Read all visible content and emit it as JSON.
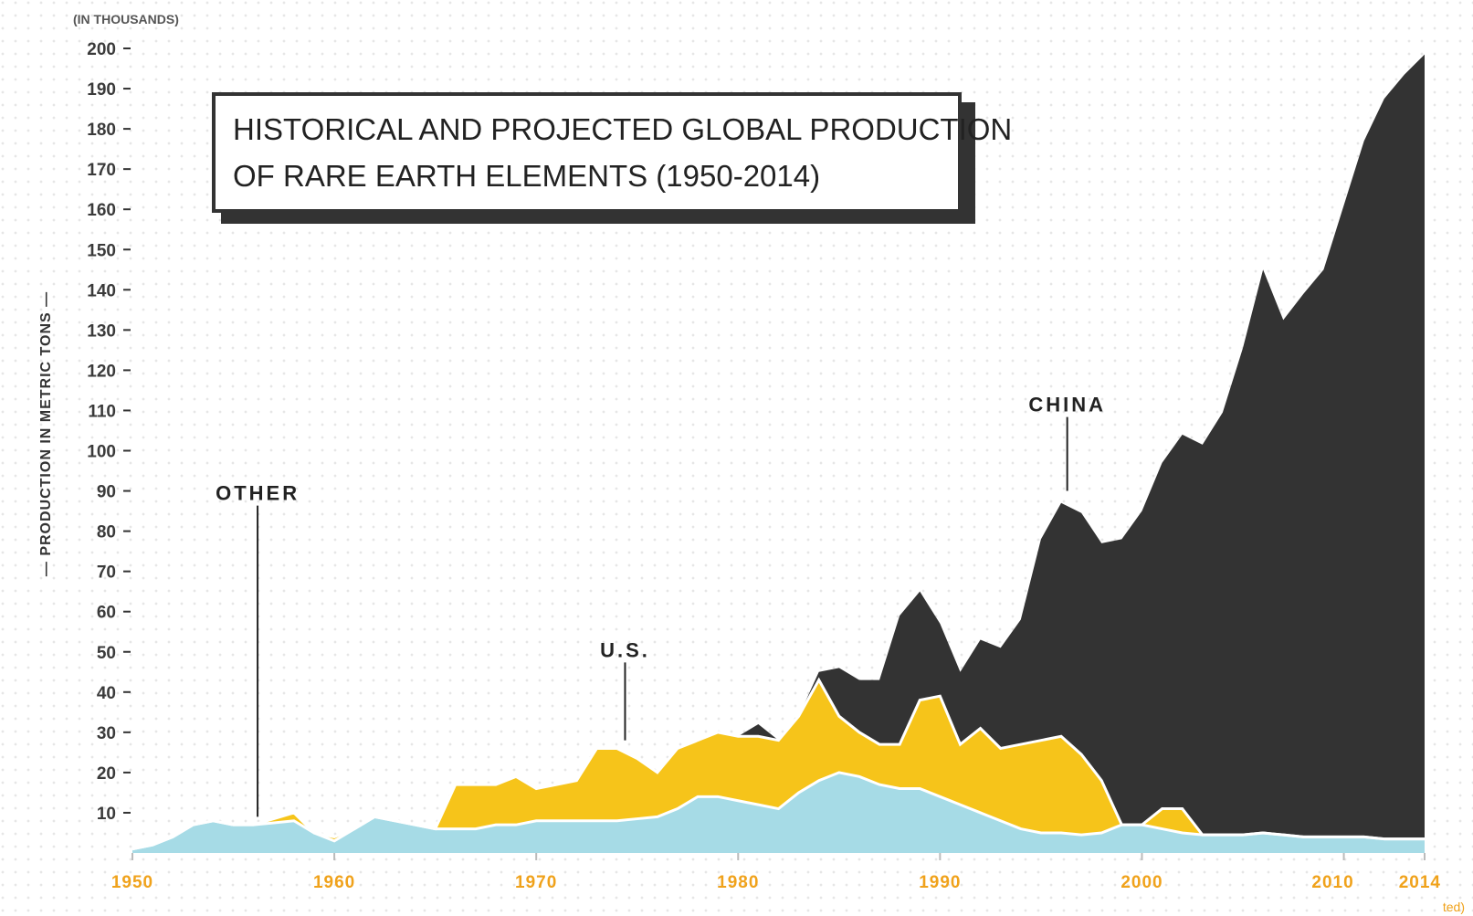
{
  "chart_data": {
    "type": "area",
    "stacked": true,
    "title_lines": [
      "HISTORICAL AND PROJECTED GLOBAL PRODUCTION",
      "OF RARE EARTH ELEMENTS (1950-2014)"
    ],
    "ylabel": "— PRODUCTION IN METRIC TONS —",
    "yunit": "(IN THOUSANDS)",
    "footnote": "ted)",
    "ylim": [
      0,
      200
    ],
    "xlim": [
      1950,
      2014
    ],
    "y_ticks": [
      10,
      20,
      30,
      40,
      50,
      60,
      70,
      80,
      90,
      100,
      110,
      120,
      130,
      140,
      150,
      160,
      170,
      180,
      190,
      200
    ],
    "x_ticks": [
      1950,
      1960,
      1970,
      1980,
      1990,
      2000,
      2010,
      2014
    ],
    "grid": "dotted",
    "colors": {
      "other": "#a6dbe6",
      "us": "#f6c41a",
      "china": "#333333",
      "label": "#222222",
      "xtick": "#f0a21b"
    },
    "x": [
      1950,
      1951,
      1952,
      1953,
      1954,
      1955,
      1956,
      1957,
      1958,
      1959,
      1960,
      1961,
      1962,
      1963,
      1964,
      1965,
      1966,
      1967,
      1968,
      1969,
      1970,
      1971,
      1972,
      1973,
      1974,
      1975,
      1976,
      1977,
      1978,
      1979,
      1980,
      1981,
      1982,
      1983,
      1984,
      1985,
      1986,
      1987,
      1988,
      1989,
      1990,
      1991,
      1992,
      1993,
      1994,
      1995,
      1996,
      1997,
      1998,
      1999,
      2000,
      2001,
      2002,
      2003,
      2004,
      2005,
      2006,
      2007,
      2008,
      2009,
      2010,
      2011,
      2012,
      2013,
      2014
    ],
    "series": [
      {
        "name": "OTHER",
        "values": [
          1,
          2,
          4,
          7,
          8,
          7,
          7,
          7.5,
          8,
          5,
          3,
          6,
          9,
          8,
          7,
          6,
          6,
          6,
          7,
          7,
          8,
          8,
          8,
          8,
          8,
          8.5,
          9,
          11,
          14,
          14,
          13,
          12,
          11,
          15,
          18,
          20,
          19,
          17,
          16,
          16,
          14,
          12,
          10,
          8,
          6,
          5,
          5,
          4.5,
          5,
          7,
          7,
          6,
          5,
          4.5,
          4.5,
          4.5,
          5,
          4.5,
          4,
          4,
          4,
          4,
          3.5,
          3.5,
          3.5
        ]
      },
      {
        "name": "U.S.",
        "values": [
          0,
          0,
          0,
          0,
          0,
          0,
          0,
          1,
          2,
          0,
          1,
          0,
          0,
          0,
          0,
          0,
          11,
          11,
          10,
          12,
          8,
          9,
          10,
          18,
          18,
          15,
          11,
          15,
          14,
          16,
          16,
          17,
          17,
          19,
          25,
          14,
          11,
          10,
          11,
          22,
          25,
          15,
          21,
          18,
          21,
          23,
          24,
          20,
          13,
          0,
          0,
          5,
          6,
          0,
          0,
          0,
          0,
          0,
          0,
          0,
          0,
          0,
          0,
          0,
          0
        ]
      },
      {
        "name": "CHINA",
        "values": [
          0,
          0,
          0,
          0,
          0,
          0,
          0,
          0,
          0,
          0,
          0,
          0,
          0,
          0,
          0,
          0,
          0,
          0,
          0,
          0,
          0,
          0,
          0,
          0,
          0,
          0,
          0,
          0,
          0,
          0,
          0,
          3,
          0,
          0,
          2,
          12,
          13,
          16,
          32,
          27,
          18,
          18,
          22,
          25,
          31,
          50,
          58,
          60,
          59,
          71,
          78,
          86,
          93,
          97,
          105,
          121,
          140,
          128,
          135,
          141,
          157,
          173,
          184,
          190,
          195
        ]
      }
    ]
  }
}
